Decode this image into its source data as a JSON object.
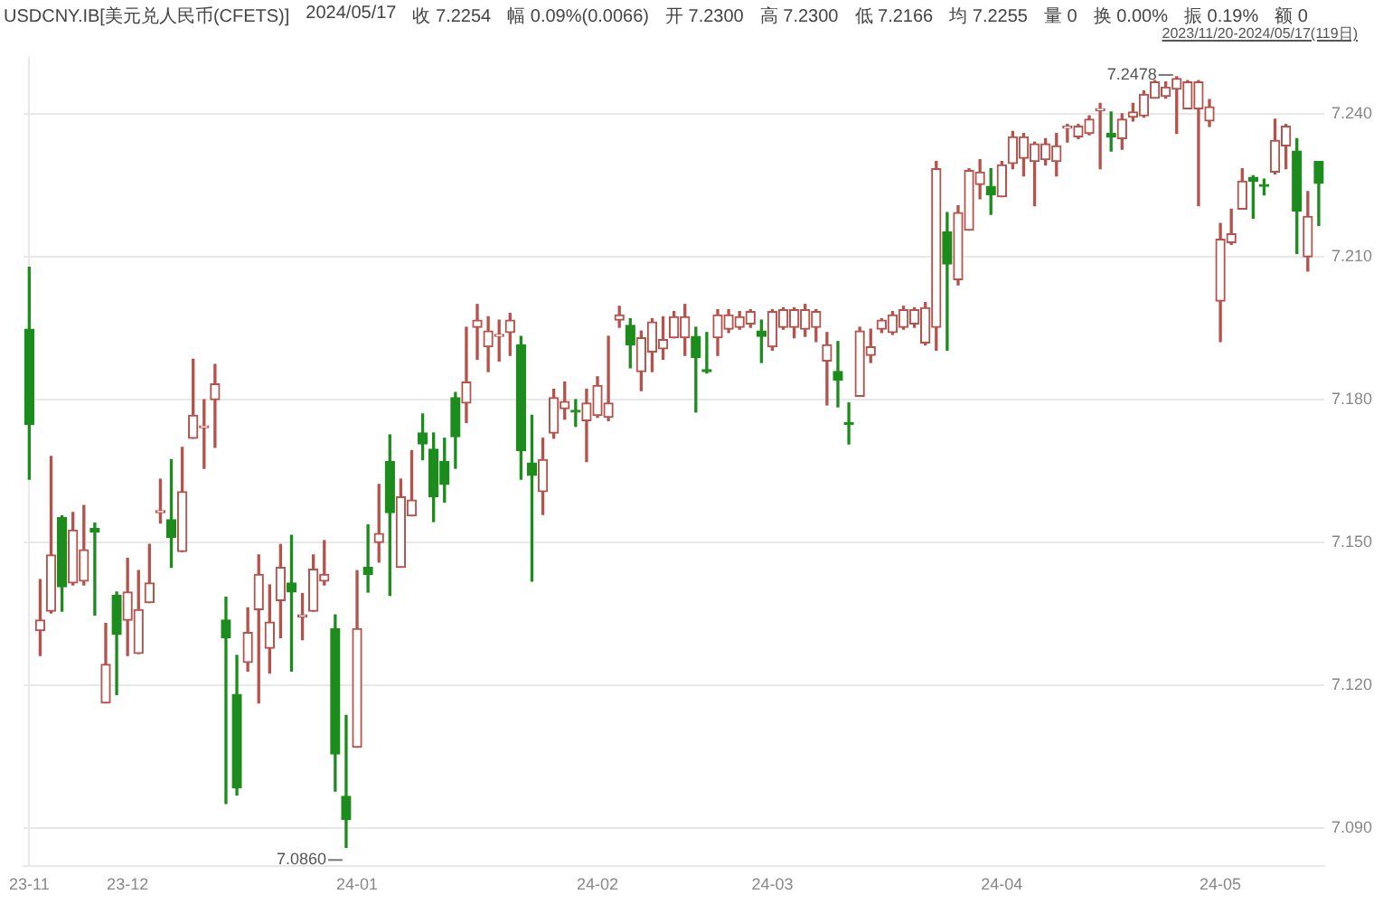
{
  "chart_data": {
    "type": "candlestick",
    "title": "USDCNY.IB[美元兑人民币(CFETS)]",
    "subtitle": "2023/11/20-2024/05/17(119日)",
    "annotations": [
      "2024/05/17",
      "收 7.2254",
      "幅 0.09%(0.0066)",
      "开 7.2300",
      "高 7.2300",
      "低 7.2166",
      "均 7.2255",
      "量 0",
      "换 0.00%",
      "振 0.19%",
      "额 0",
      "7.2478",
      "7.0860"
    ],
    "categories": [
      "23-11",
      null,
      null,
      null,
      null,
      null,
      null,
      null,
      null,
      "23-12",
      null,
      null,
      null,
      null,
      null,
      null,
      null,
      null,
      null,
      null,
      null,
      null,
      null,
      null,
      null,
      null,
      null,
      null,
      null,
      null,
      "24-01",
      null,
      null,
      null,
      null,
      null,
      null,
      null,
      null,
      null,
      null,
      null,
      null,
      null,
      null,
      null,
      null,
      null,
      null,
      null,
      null,
      null,
      "24-02",
      null,
      null,
      null,
      null,
      null,
      null,
      null,
      null,
      null,
      null,
      null,
      null,
      null,
      null,
      null,
      "24-03",
      null,
      null,
      null,
      null,
      null,
      null,
      null,
      null,
      null,
      null,
      null,
      null,
      null,
      null,
      null,
      null,
      null,
      null,
      null,
      null,
      "24-04",
      null,
      null,
      null,
      null,
      null,
      null,
      null,
      null,
      null,
      null,
      null,
      null,
      null,
      null,
      null,
      null,
      null,
      null,
      null,
      "24-05",
      null,
      null,
      null,
      null,
      null,
      null,
      null,
      null,
      null
    ],
    "ohlc": [
      [
        7.1948,
        7.2078,
        7.1633,
        7.1748
      ],
      [
        7.1315,
        7.1422,
        7.1263,
        7.1337
      ],
      [
        7.1356,
        7.1681,
        7.1352,
        7.1474
      ],
      [
        7.1552,
        7.1556,
        7.1356,
        7.1407
      ],
      [
        7.1415,
        7.1563,
        7.1411,
        7.1526
      ],
      [
        7.1419,
        7.1578,
        7.1411,
        7.1485
      ],
      [
        7.153,
        7.1541,
        7.1348,
        7.1522
      ],
      [
        7.1163,
        7.133,
        7.1163,
        7.1244
      ],
      [
        7.1389,
        7.1396,
        7.1181,
        7.1307
      ],
      [
        7.1337,
        7.1467,
        7.1263,
        7.1396
      ],
      [
        7.1267,
        7.1441,
        7.1267,
        7.1359
      ],
      [
        7.1374,
        7.1496,
        7.1374,
        7.1415
      ],
      [
        7.1563,
        7.1633,
        7.1541,
        7.1567
      ],
      [
        7.1548,
        7.1674,
        7.1448,
        7.1511
      ],
      [
        7.1481,
        7.17,
        7.1481,
        7.1607
      ],
      [
        7.1719,
        7.1885,
        7.1719,
        7.1767
      ],
      [
        7.1741,
        7.18,
        7.1656,
        7.1743
      ],
      [
        7.18,
        7.1874,
        7.17,
        7.1833
      ],
      [
        7.1337,
        7.1385,
        7.0952,
        7.13
      ],
      [
        7.1181,
        7.1263,
        7.097,
        7.0985
      ],
      [
        7.1248,
        7.1363,
        7.123,
        7.1311
      ],
      [
        7.1359,
        7.1474,
        7.1163,
        7.1433
      ],
      [
        7.1278,
        7.1411,
        7.1226,
        7.1333
      ],
      [
        7.1378,
        7.1496,
        7.13,
        7.1448
      ],
      [
        7.1415,
        7.1515,
        7.123,
        7.1396
      ],
      [
        7.1344,
        7.1393,
        7.1296,
        7.1348
      ],
      [
        7.1356,
        7.1474,
        7.1356,
        7.1444
      ],
      [
        7.1419,
        7.1504,
        7.1411,
        7.1433
      ],
      [
        7.1319,
        7.1348,
        7.0978,
        7.1056
      ],
      [
        7.0967,
        7.1137,
        7.086,
        7.0919
      ],
      [
        7.107,
        7.1441,
        7.107,
        7.1319
      ],
      [
        7.1448,
        7.1537,
        7.1396,
        7.1433
      ],
      [
        7.15,
        7.1622,
        7.1459,
        7.1519
      ],
      [
        7.167,
        7.1726,
        7.1389,
        7.1563
      ],
      [
        7.1448,
        7.1633,
        7.1448,
        7.1596
      ],
      [
        7.1556,
        7.1693,
        7.1556,
        7.1589
      ],
      [
        7.173,
        7.177,
        7.1674,
        7.1707
      ],
      [
        7.1696,
        7.173,
        7.1544,
        7.1596
      ],
      [
        7.167,
        7.1719,
        7.1585,
        7.1622
      ],
      [
        7.1804,
        7.1815,
        7.1656,
        7.1722
      ],
      [
        7.1793,
        7.1952,
        7.1752,
        7.1837
      ],
      [
        7.1952,
        7.2,
        7.1885,
        7.1967
      ],
      [
        7.1911,
        7.1974,
        7.1859,
        7.1944
      ],
      [
        7.1933,
        7.1967,
        7.1881,
        7.1937
      ],
      [
        7.1941,
        7.1981,
        7.1893,
        7.1967
      ],
      [
        7.1915,
        7.1933,
        7.1633,
        7.1693
      ],
      [
        7.1667,
        7.1767,
        7.1419,
        7.1641
      ],
      [
        7.1607,
        7.1719,
        7.1559,
        7.1674
      ],
      [
        7.173,
        7.1822,
        7.1719,
        7.1804
      ],
      [
        7.1781,
        7.1837,
        7.1759,
        7.1796
      ],
      [
        7.1776,
        7.18,
        7.1744,
        7.1774
      ],
      [
        7.1756,
        7.1822,
        7.167,
        7.1793
      ],
      [
        7.1767,
        7.1848,
        7.1763,
        7.183
      ],
      [
        7.1763,
        7.1933,
        7.1756,
        7.1793
      ],
      [
        7.1967,
        7.1996,
        7.1952,
        7.1978
      ],
      [
        7.1956,
        7.197,
        7.1867,
        7.1915
      ],
      [
        7.1859,
        7.1944,
        7.1819,
        7.193
      ],
      [
        7.19,
        7.197,
        7.1859,
        7.1963
      ],
      [
        7.1907,
        7.1974,
        7.1885,
        7.1926
      ],
      [
        7.193,
        7.1985,
        7.193,
        7.1974
      ],
      [
        7.193,
        7.2,
        7.1893,
        7.1974
      ],
      [
        7.1933,
        7.1952,
        7.1774,
        7.1889
      ],
      [
        7.1863,
        7.1941,
        7.1856,
        7.1859
      ],
      [
        7.193,
        7.1989,
        7.1893,
        7.1978
      ],
      [
        7.1948,
        7.1989,
        7.1941,
        7.1978
      ],
      [
        7.1952,
        7.1985,
        7.1948,
        7.1974
      ],
      [
        7.1959,
        7.1989,
        7.1952,
        7.1985
      ],
      [
        7.1944,
        7.1967,
        7.1878,
        7.1933
      ],
      [
        7.1911,
        7.1989,
        7.1904,
        7.1985
      ],
      [
        7.1952,
        7.1993,
        7.1948,
        7.1989
      ],
      [
        7.1952,
        7.1993,
        7.193,
        7.1989
      ],
      [
        7.1948,
        7.2,
        7.1933,
        7.1989
      ],
      [
        7.1952,
        7.1989,
        7.1922,
        7.1985
      ],
      [
        7.1881,
        7.1941,
        7.1789,
        7.1915
      ],
      [
        7.1859,
        7.1922,
        7.1785,
        7.1841
      ],
      [
        7.1751,
        7.1793,
        7.1707,
        7.1748
      ],
      [
        7.1807,
        7.1952,
        7.1807,
        7.1944
      ],
      [
        7.1893,
        7.1948,
        7.1878,
        7.1911
      ],
      [
        7.1948,
        7.197,
        7.1941,
        7.1967
      ],
      [
        7.1941,
        7.1985,
        7.1937,
        7.1978
      ],
      [
        7.1952,
        7.1996,
        7.1948,
        7.1989
      ],
      [
        7.1959,
        7.1993,
        7.1952,
        7.1989
      ],
      [
        7.1919,
        7.2004,
        7.1915,
        7.1993
      ],
      [
        7.1952,
        7.23,
        7.1904,
        7.2285
      ],
      [
        7.2152,
        7.2193,
        7.1904,
        7.2085
      ],
      [
        7.2052,
        7.2207,
        7.2041,
        7.2193
      ],
      [
        7.2156,
        7.2285,
        7.2156,
        7.2281
      ],
      [
        7.2252,
        7.2304,
        7.2222,
        7.2278
      ],
      [
        7.2248,
        7.2285,
        7.2189,
        7.223
      ],
      [
        7.2226,
        7.23,
        7.2226,
        7.2293
      ],
      [
        7.2296,
        7.2363,
        7.2285,
        7.2352
      ],
      [
        7.2307,
        7.2359,
        7.227,
        7.2352
      ],
      [
        7.23,
        7.2341,
        7.2207,
        7.2337
      ],
      [
        7.2304,
        7.2348,
        7.2293,
        7.2337
      ],
      [
        7.23,
        7.2359,
        7.227,
        7.2333
      ],
      [
        7.237,
        7.2378,
        7.2341,
        7.2374
      ],
      [
        7.2352,
        7.2378,
        7.2348,
        7.2374
      ],
      [
        7.2359,
        7.2396,
        7.2356,
        7.2389
      ],
      [
        7.2407,
        7.2422,
        7.2285,
        7.2411
      ],
      [
        7.2359,
        7.2404,
        7.2322,
        7.2352
      ],
      [
        7.2348,
        7.24,
        7.2326,
        7.2389
      ],
      [
        7.2393,
        7.2422,
        7.2385,
        7.2404
      ],
      [
        7.2396,
        7.2448,
        7.2393,
        7.2441
      ],
      [
        7.2433,
        7.247,
        7.2433,
        7.2467
      ],
      [
        7.2437,
        7.2467,
        7.2433,
        7.2456
      ],
      [
        7.2452,
        7.2478,
        7.2359,
        7.2474
      ],
      [
        7.2411,
        7.247,
        7.2411,
        7.2467
      ],
      [
        7.2411,
        7.247,
        7.2207,
        7.2467
      ],
      [
        7.2385,
        7.243,
        7.2374,
        7.2415
      ],
      [
        7.2007,
        7.217,
        7.1922,
        7.2137
      ],
      [
        7.213,
        7.22,
        7.2126,
        7.2148
      ],
      [
        7.22,
        7.2285,
        7.22,
        7.2259
      ],
      [
        7.2267,
        7.227,
        7.2181,
        7.2259
      ],
      [
        7.225,
        7.2263,
        7.223,
        7.2248
      ],
      [
        7.2278,
        7.2389,
        7.2274,
        7.2344
      ],
      [
        7.2333,
        7.2378,
        7.2285,
        7.2374
      ],
      [
        7.2322,
        7.2348,
        7.2107,
        7.2196
      ],
      [
        7.21,
        7.2237,
        7.207,
        7.2185
      ],
      [
        7.23,
        7.23,
        7.2166,
        7.2254
      ]
    ],
    "colors": [
      "#1c8c1c",
      "#b5524c",
      "#b5524c",
      "#1c8c1c",
      "#b5524c",
      "#b5524c",
      "#1c8c1c",
      "#b5524c",
      "#1c8c1c",
      "#b5524c",
      "#b5524c",
      "#b5524c",
      "#b5524c",
      "#1c8c1c",
      "#b5524c",
      "#b5524c",
      "#b5524c",
      "#b5524c",
      "#1c8c1c",
      "#1c8c1c",
      "#b5524c",
      "#b5524c",
      "#b5524c",
      "#b5524c",
      "#1c8c1c",
      "#b5524c",
      "#b5524c",
      "#b5524c",
      "#1c8c1c",
      "#1c8c1c",
      "#b5524c",
      "#1c8c1c",
      "#b5524c",
      "#1c8c1c",
      "#b5524c",
      "#b5524c",
      "#1c8c1c",
      "#1c8c1c",
      "#1c8c1c",
      "#1c8c1c",
      "#b5524c",
      "#b5524c",
      "#b5524c",
      "#b5524c",
      "#b5524c",
      "#1c8c1c",
      "#1c8c1c",
      "#b5524c",
      "#b5524c",
      "#b5524c",
      "#1c8c1c",
      "#b5524c",
      "#b5524c",
      "#b5524c",
      "#b5524c",
      "#1c8c1c",
      "#b5524c",
      "#b5524c",
      "#b5524c",
      "#b5524c",
      "#b5524c",
      "#1c8c1c",
      "#1c8c1c",
      "#b5524c",
      "#b5524c",
      "#b5524c",
      "#b5524c",
      "#1c8c1c",
      "#b5524c",
      "#b5524c",
      "#b5524c",
      "#b5524c",
      "#b5524c",
      "#b5524c",
      "#1c8c1c",
      "#1c8c1c",
      "#b5524c",
      "#b5524c",
      "#b5524c",
      "#b5524c",
      "#b5524c",
      "#b5524c",
      "#b5524c",
      "#b5524c",
      "#1c8c1c",
      "#b5524c",
      "#b5524c",
      "#b5524c",
      "#1c8c1c",
      "#b5524c",
      "#b5524c",
      "#b5524c",
      "#b5524c",
      "#b5524c",
      "#b5524c",
      "#b5524c",
      "#b5524c",
      "#b5524c",
      "#b5524c",
      "#1c8c1c",
      "#b5524c",
      "#b5524c",
      "#b5524c",
      "#b5524c",
      "#b5524c",
      "#b5524c",
      "#b5524c",
      "#b5524c",
      "#b5524c",
      "#b5524c",
      "#b5524c",
      "#b5524c",
      "#1c8c1c",
      "#1c8c1c",
      "#b5524c",
      "#b5524c",
      "#1c8c1c",
      "#b5524c",
      "#1c8c1c"
    ],
    "ylim": [
      7.082,
      7.252
    ],
    "yticks": [
      {
        "value": 7.09,
        "label": "7.090"
      },
      {
        "value": 7.12,
        "label": "7.120"
      },
      {
        "value": 7.15,
        "label": "7.150"
      },
      {
        "value": 7.18,
        "label": "7.180"
      },
      {
        "value": 7.21,
        "label": "7.210"
      },
      {
        "value": 7.24,
        "label": "7.240"
      }
    ],
    "grid": true
  }
}
